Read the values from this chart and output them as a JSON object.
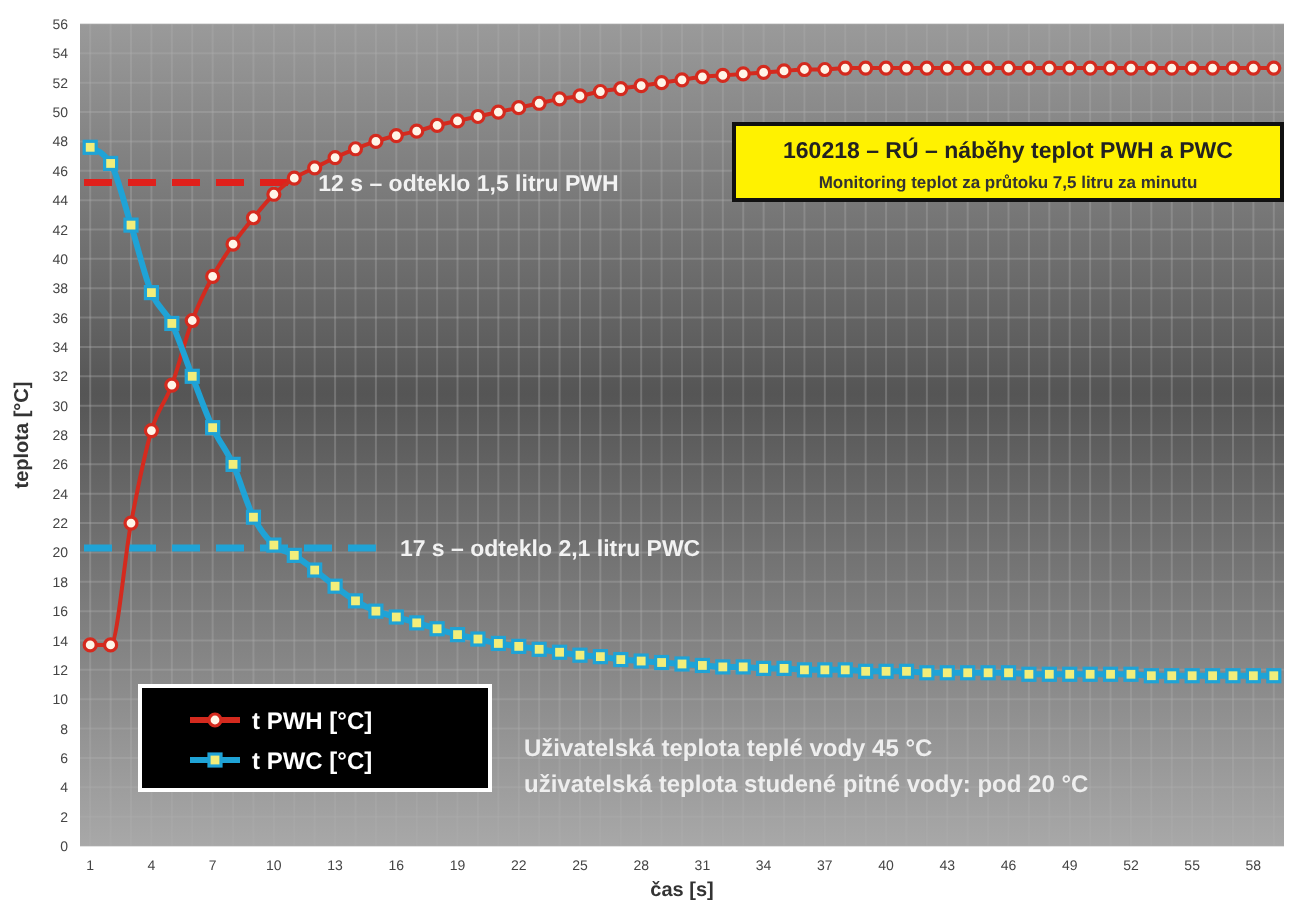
{
  "chart_data": {
    "type": "line",
    "title": "160218 – RÚ – náběhy teplot PWH a PWC",
    "subtitle": "Monitoring teplot za průtoku 7,5 litru za minutu",
    "xlabel": "čas [s]",
    "ylabel": "teplota [°C]",
    "categories": [
      "1",
      null,
      null,
      "4",
      null,
      null,
      "7",
      null,
      null,
      "10",
      null,
      null,
      "13",
      null,
      null,
      "16",
      null,
      null,
      "19",
      null,
      null,
      "22",
      null,
      null,
      "25",
      null,
      null,
      "28",
      null,
      null,
      "31",
      null,
      null,
      "34",
      null,
      null,
      "37",
      null,
      null,
      "40",
      null,
      null,
      "43",
      null,
      null,
      "46",
      null,
      null,
      "49",
      null,
      null,
      "52",
      null,
      null,
      "55",
      null,
      null,
      "58",
      null
    ],
    "series": [
      {
        "name": "t PWH [°C]",
        "color": "#d42a1e",
        "marker": "circle",
        "values": [
          13.7,
          13.7,
          22,
          28.3,
          31.4,
          35.8,
          38.8,
          41,
          42.8,
          44.4,
          45.5,
          46.2,
          46.9,
          47.5,
          48,
          48.4,
          48.7,
          49.1,
          49.4,
          49.7,
          50,
          50.3,
          50.6,
          50.9,
          51.1,
          51.4,
          51.6,
          51.8,
          52,
          52.2,
          52.4,
          52.5,
          52.6,
          52.7,
          52.8,
          52.9,
          52.9,
          53,
          53,
          53,
          53,
          53,
          53,
          53,
          53,
          53,
          53,
          53,
          53,
          53,
          53,
          53,
          53,
          53,
          53,
          53,
          53,
          53,
          53
        ]
      },
      {
        "name": "t PWC [°C]",
        "color": "#1fa3d6",
        "marker": "square",
        "values": [
          47.6,
          46.5,
          42.3,
          37.7,
          35.6,
          32,
          28.5,
          26,
          22.4,
          20.5,
          19.8,
          18.8,
          17.7,
          16.7,
          16,
          15.6,
          15.2,
          14.8,
          14.4,
          14.1,
          13.8,
          13.6,
          13.4,
          13.2,
          13,
          12.9,
          12.7,
          12.6,
          12.5,
          12.4,
          12.3,
          12.2,
          12.2,
          12.1,
          12.1,
          12,
          12,
          12,
          11.9,
          11.9,
          11.9,
          11.8,
          11.8,
          11.8,
          11.8,
          11.8,
          11.7,
          11.7,
          11.7,
          11.7,
          11.7,
          11.7,
          11.6,
          11.6,
          11.6,
          11.6,
          11.6,
          11.6,
          11.6
        ]
      }
    ],
    "ylim": [
      0,
      56
    ],
    "yticks": [
      0,
      2,
      4,
      6,
      8,
      10,
      12,
      14,
      16,
      18,
      20,
      22,
      24,
      26,
      28,
      30,
      32,
      34,
      36,
      38,
      40,
      42,
      44,
      46,
      48,
      50,
      52,
      54,
      56
    ],
    "grid": true,
    "legend": "bottom left",
    "line_style": "solid",
    "ref_lines": [
      {
        "axis": "y",
        "value": 45.2,
        "label": "12 s – odteklo 1,5 litru PWH",
        "color": "#e0201b",
        "line_style": "dashed"
      },
      {
        "axis": "y",
        "value": 20.3,
        "label": "17 s – odteklo 2,1 litru PWC",
        "color": "#1fa3d6",
        "line_style": "dashed"
      }
    ],
    "annotations": [
      "Uživatelská teplota teplé vody 45 °C",
      "uživatelská teplota studené pitné vody: pod 20 °C"
    ]
  }
}
